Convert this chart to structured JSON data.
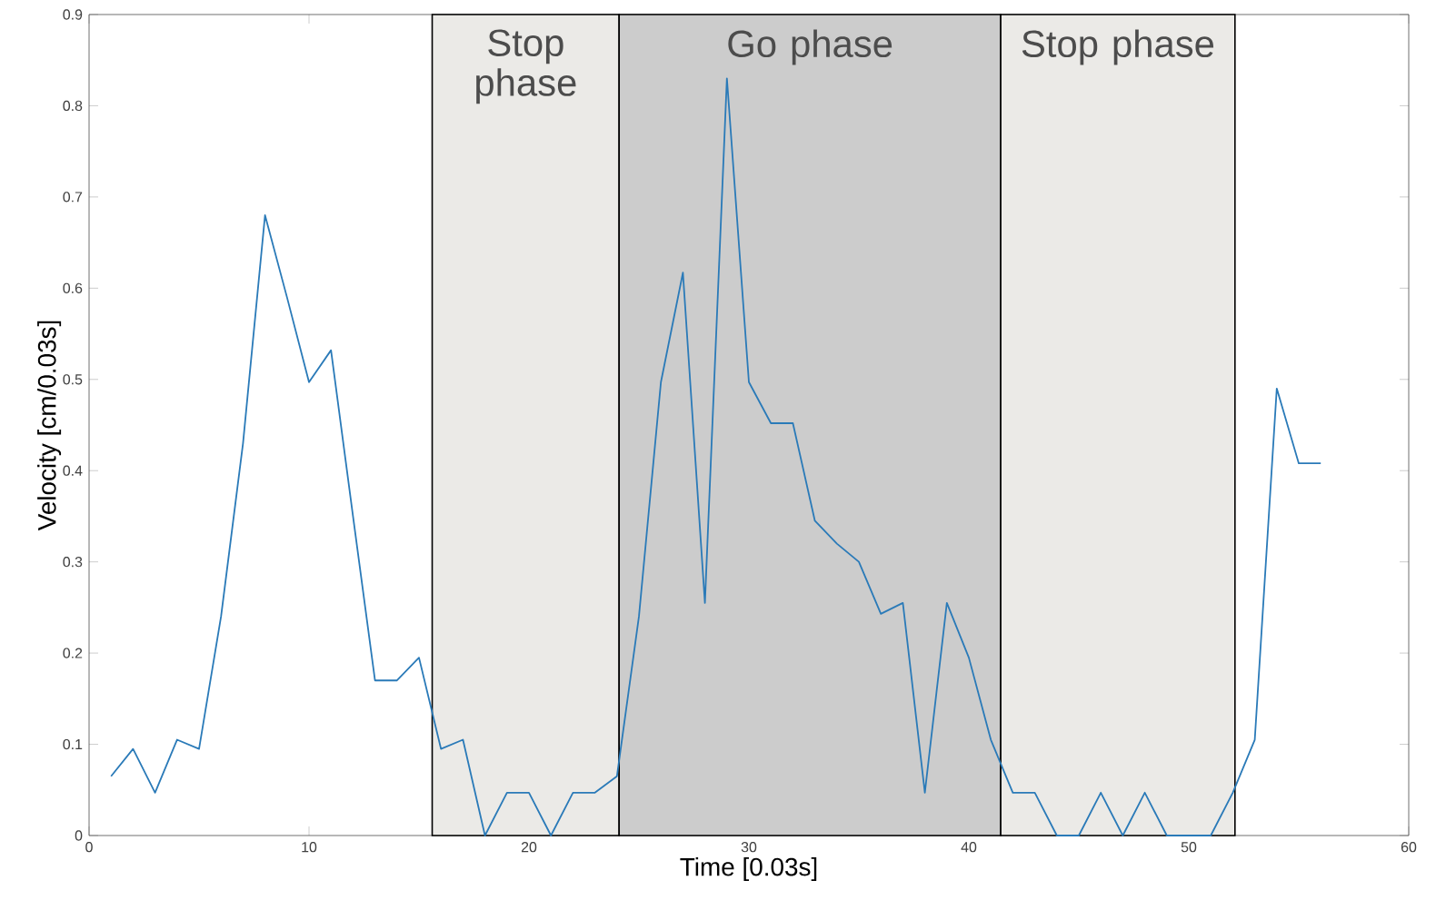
{
  "chart_data": {
    "type": "line",
    "xlabel": "Time [0.03s]",
    "ylabel": "Velocity [cm/0.03s]",
    "x": [
      1,
      2,
      3,
      4,
      5,
      6,
      7,
      8,
      9,
      10,
      11,
      12,
      13,
      14,
      15,
      16,
      17,
      18,
      19,
      20,
      21,
      22,
      23,
      24,
      25,
      26,
      27,
      28,
      29,
      30,
      31,
      32,
      33,
      34,
      35,
      36,
      37,
      38,
      39,
      40,
      41,
      42,
      43,
      44,
      45,
      46,
      47,
      48,
      49,
      50,
      51,
      52,
      53,
      54,
      55,
      56
    ],
    "series": [
      {
        "color": "#2a7ab8",
        "values": [
          0.065,
          0.095,
          0.047,
          0.105,
          0.095,
          0.24,
          0.43,
          0.68,
          0.59,
          0.497,
          0.532,
          0.35,
          0.17,
          0.17,
          0.195,
          0.095,
          0.105,
          0,
          0.047,
          0.047,
          0,
          0.047,
          0.047,
          0.065,
          0.24,
          0.497,
          0.617,
          0.255,
          0.83,
          0.497,
          0.452,
          0.452,
          0.345,
          0.32,
          0.3,
          0.243,
          0.255,
          0.047,
          0.255,
          0.195,
          0.105,
          0.047,
          0.047,
          0,
          0,
          0.047,
          0,
          0.047,
          0,
          0,
          0,
          0.047,
          0.105,
          0.49,
          0.408,
          0.408
        ]
      }
    ],
    "xlim": [
      0,
      60
    ],
    "xticks": [
      0,
      10,
      20,
      30,
      40,
      50,
      60
    ],
    "ylim": [
      0,
      0.9
    ],
    "yticks": [
      0,
      0.1,
      0.2,
      0.3,
      0.4,
      0.5,
      0.6,
      0.7,
      0.8,
      0.9
    ],
    "bands": [
      {
        "axis": "x",
        "from": 15.6,
        "to": 24.1,
        "label": "Stop phase",
        "color": "#ebeae7"
      },
      {
        "axis": "x",
        "from": 24.1,
        "to": 41.45,
        "label": "Go phase",
        "color": "#cccccc"
      },
      {
        "axis": "x",
        "from": 41.45,
        "to": 52.1,
        "label": "Stop phase",
        "color": "#ebeae7"
      }
    ],
    "grid": false,
    "marker": "none",
    "line_style": "solid"
  }
}
